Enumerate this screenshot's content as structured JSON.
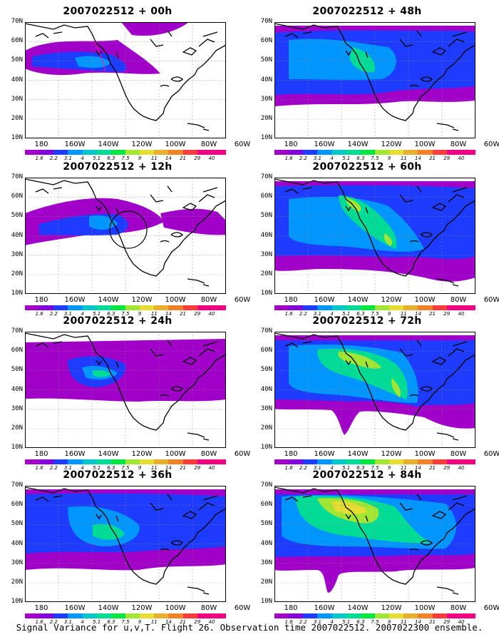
{
  "caption": "Signal Variance for u,v,T. Flight 26. Observation time 2007022512. 2007022300 ensemble.",
  "y_ticks": [
    "70N",
    "60N",
    "50N",
    "40N",
    "30N",
    "20N",
    "10N"
  ],
  "x_ticks": [
    "180",
    "160W",
    "140W",
    "120W",
    "100W",
    "80W",
    "60W"
  ],
  "colorbar": {
    "labels": [
      "1.6",
      "2.2",
      "3.1",
      "4",
      "5.1",
      "6.3",
      "7.5",
      "9",
      "11",
      "14",
      "21",
      "29",
      "40"
    ],
    "colors": [
      "#a000c8",
      "#8200dc",
      "#1e3cff",
      "#0096ff",
      "#00c8c8",
      "#00dc96",
      "#00e640",
      "#a0e632",
      "#e6dc32",
      "#e6af2d",
      "#f08228",
      "#fa3c3c",
      "#f00082"
    ]
  },
  "panels": [
    {
      "title": "2007022512 + 00h"
    },
    {
      "title": "2007022512 + 48h"
    },
    {
      "title": "2007022512 + 12h"
    },
    {
      "title": "2007022512 + 60h"
    },
    {
      "title": "2007022512 + 24h"
    },
    {
      "title": "2007022512 + 72h"
    },
    {
      "title": "2007022512 + 36h"
    },
    {
      "title": "2007022512 + 84h"
    }
  ]
}
